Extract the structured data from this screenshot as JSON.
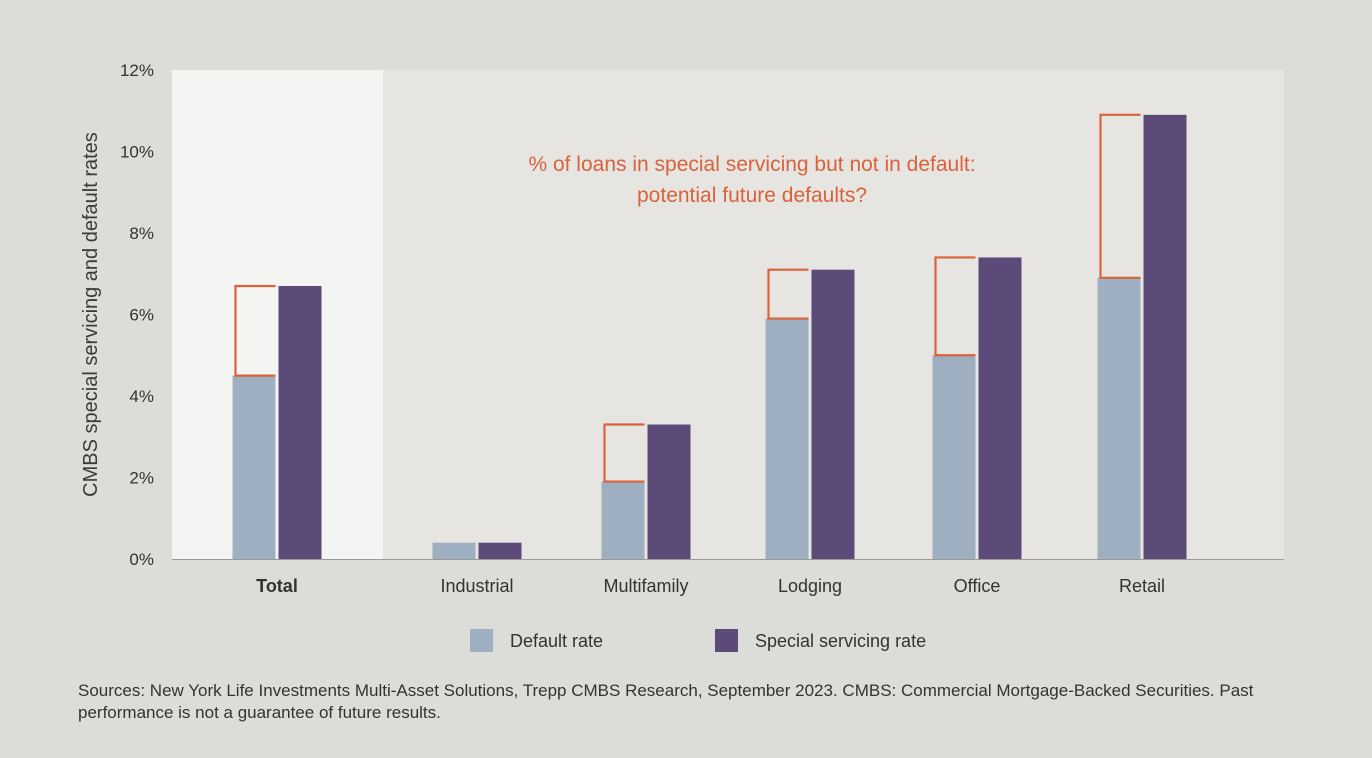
{
  "chart_data": {
    "type": "bar",
    "ylabel": "CMBS special servicing and default rates",
    "ylim": [
      0,
      12
    ],
    "y_ticks": [
      0,
      2,
      4,
      6,
      8,
      10,
      12
    ],
    "y_tick_suffix": "%",
    "categories": [
      "Total",
      "Industrial",
      "Multifamily",
      "Lodging",
      "Office",
      "Retail"
    ],
    "highlighted_category": "Total",
    "series": [
      {
        "name": "Default rate",
        "values": [
          4.5,
          0.4,
          1.9,
          5.9,
          5.0,
          6.9
        ]
      },
      {
        "name": "Special servicing rate",
        "values": [
          6.7,
          0.4,
          3.3,
          7.1,
          7.4,
          10.9
        ]
      }
    ],
    "bracket_categories": [
      "Total",
      "Multifamily",
      "Lodging",
      "Office",
      "Retail"
    ],
    "annotation_lines": [
      "% of loans in special servicing but not in default:",
      "potential future defaults?"
    ],
    "legend_position": "bottom",
    "grid": false,
    "colors": {
      "default_rate": "#9fafc2",
      "special_servicing_rate": "#5c4a78",
      "bracket": "#d9623b",
      "annotation": "#d9623b",
      "plot_background": "#e6e5e2",
      "highlight_background": "#f4f4f2"
    }
  },
  "source_note": "Sources: New York Life Investments Multi-Asset Solutions, Trepp CMBS Research, September 2023. CMBS: Commercial Mortgage-Backed Securities. Past performance is not a guarantee of future results."
}
